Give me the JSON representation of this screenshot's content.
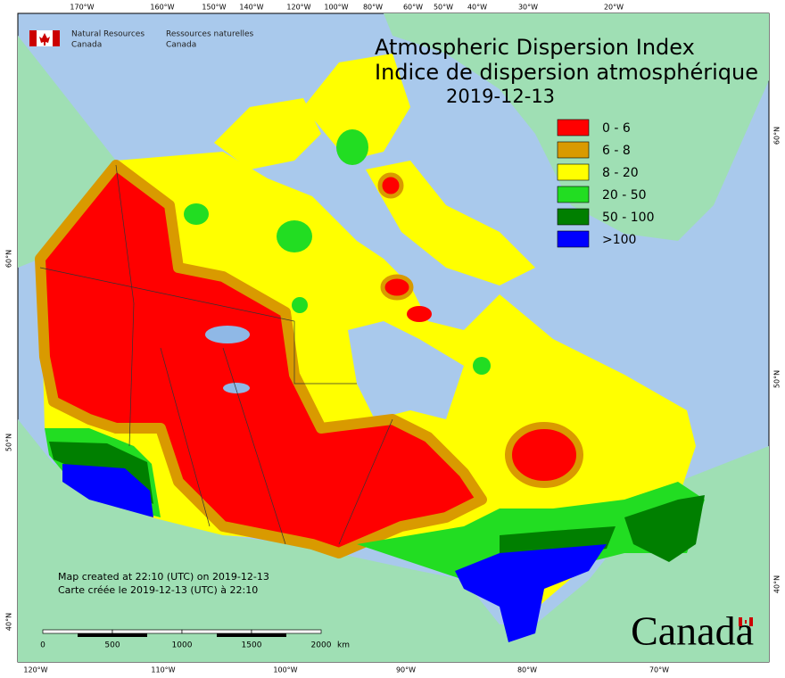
{
  "header": {
    "org_en": "Natural Resources",
    "country_en": "Canada",
    "org_fr": "Ressources naturelles",
    "country_fr": "Canada"
  },
  "title": {
    "en": "Atmospheric Dispersion Index",
    "fr": "Indice de dispersion atmosphérique",
    "date": "2019-12-13"
  },
  "legend": [
    {
      "label": "0 - 6",
      "color": "#ff0000"
    },
    {
      "label": "6 - 8",
      "color": "#d99a00"
    },
    {
      "label": "8 - 20",
      "color": "#ffff00"
    },
    {
      "label": "20 - 50",
      "color": "#22dd22"
    },
    {
      "label": "50 - 100",
      "color": "#007f00"
    },
    {
      "label": ">100",
      "color": "#0000ff"
    }
  ],
  "credits": [
    "Map created at 22:10 (UTC) on 2019-12-13",
    "Carte créée le 2019-12-13 (UTC) à 22:10"
  ],
  "scale_bar": {
    "labels": [
      "0",
      "500",
      "1000",
      "1500",
      "2000"
    ],
    "unit": "km"
  },
  "graticule": {
    "top": [
      "170°W",
      "160°W",
      "150°W",
      "140°W",
      "120°W",
      "100°W",
      "80°W",
      "60°W",
      "50°W",
      "40°W",
      "30°W",
      "20°W"
    ],
    "bottom": [
      "120°W",
      "110°W",
      "100°W",
      "90°W",
      "80°W",
      "70°W"
    ],
    "left": [
      "60°N",
      "50°N",
      "40°N"
    ],
    "right": [
      "60°N",
      "50°N",
      "40°N"
    ]
  },
  "wordmark": "Canada"
}
